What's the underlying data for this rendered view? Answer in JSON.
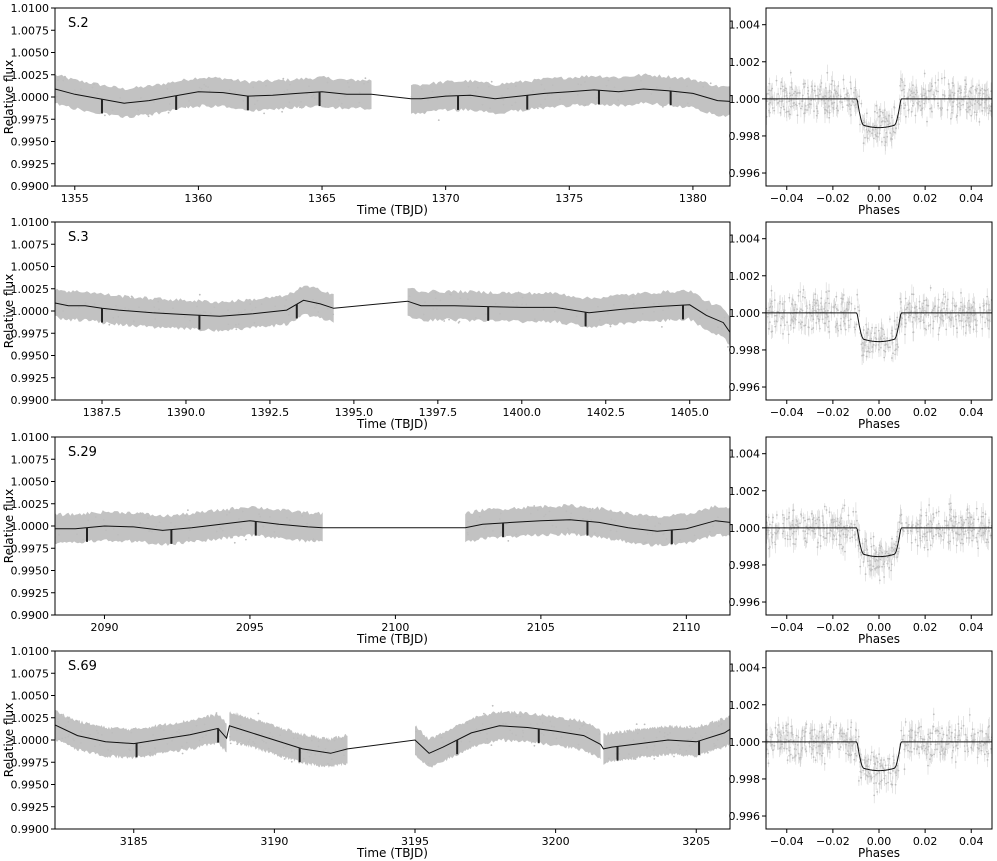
{
  "figure": {
    "left_xlabel": "Time (TBJD)",
    "left_ylabel": "Relative flux",
    "right_xlabel": "Phases",
    "colors": {
      "data": "#c2c2c2",
      "model": "#111111",
      "axes": "#000000"
    }
  },
  "chart_data": [
    {
      "type": "scatter",
      "panel": "light-curve",
      "label": "S.2",
      "xlabel": "Time (TBJD)",
      "ylabel": "Relative flux",
      "xlim": [
        1354.2,
        1381.5
      ],
      "ylim": [
        0.99,
        1.01
      ],
      "xticks": [
        1355,
        1360,
        1365,
        1370,
        1375,
        1380
      ],
      "yticks": [
        0.99,
        0.9925,
        0.995,
        0.9975,
        1.0,
        1.0025,
        1.005,
        1.0075,
        1.01
      ],
      "ytick_labels": [
        "0.9900",
        "0.9925",
        "0.9950",
        "0.9975",
        "1.0000",
        "1.0025",
        "1.0050",
        "1.0075",
        "1.0100"
      ],
      "segments": [
        [
          1354.2,
          1367.0
        ],
        [
          1368.6,
          1381.5
        ]
      ],
      "transits": [
        1356.1,
        1359.1,
        1362.0,
        1364.9,
        1370.5,
        1373.3,
        1376.2,
        1379.1
      ],
      "trend": {
        "x": [
          1354.2,
          1355,
          1356,
          1357,
          1358,
          1359,
          1360,
          1361,
          1362,
          1363,
          1364,
          1365,
          1366,
          1367,
          1368.6,
          1369,
          1370,
          1371,
          1372,
          1373,
          1374,
          1375,
          1376,
          1377,
          1378,
          1379,
          1380,
          1381,
          1381.5
        ],
        "y": [
          1.0009,
          1.0003,
          0.9998,
          0.9993,
          0.9996,
          1.0001,
          1.0006,
          1.0005,
          1.0001,
          1.0002,
          1.0004,
          1.0006,
          1.0003,
          1.0003,
          0.9998,
          0.9998,
          1.0001,
          1.0002,
          0.9998,
          1.0001,
          1.0004,
          1.0006,
          1.0008,
          1.0006,
          1.0009,
          1.0007,
          1.0004,
          0.9996,
          0.9995
        ]
      }
    },
    {
      "type": "scatter",
      "panel": "phase-fold",
      "xlabel": "Phases",
      "xlim": [
        -0.049,
        0.049
      ],
      "ylim": [
        0.9953,
        1.0049
      ],
      "xticks": [
        -0.04,
        -0.02,
        0.0,
        0.02,
        0.04
      ],
      "xtick_labels": [
        "−0.04",
        "−0.02",
        "0.00",
        "0.02",
        "0.04"
      ],
      "yticks": [
        0.996,
        0.998,
        1.0,
        1.002,
        1.004
      ],
      "ytick_labels": [
        "0.996",
        "0.998",
        "1.000",
        "1.002",
        "1.004"
      ],
      "model": {
        "baseline": 1.0,
        "depth": 0.00155,
        "t1": 0.0095,
        "t2": 0.0065
      }
    },
    {
      "type": "scatter",
      "panel": "light-curve",
      "label": "S.3",
      "xlabel": "Time (TBJD)",
      "ylabel": "Relative flux",
      "xlim": [
        1386.1,
        1406.2
      ],
      "ylim": [
        0.99,
        1.01
      ],
      "xticks": [
        1387.5,
        1390.0,
        1392.5,
        1395.0,
        1397.5,
        1400.0,
        1402.5,
        1405.0
      ],
      "xtick_labels": [
        "1387.5",
        "1390.0",
        "1392.5",
        "1395.0",
        "1397.5",
        "1400.0",
        "1402.5",
        "1405.0"
      ],
      "yticks": [
        0.99,
        0.9925,
        0.995,
        0.9975,
        1.0,
        1.0025,
        1.005,
        1.0075,
        1.01
      ],
      "ytick_labels": [
        "0.9900",
        "0.9925",
        "0.9950",
        "0.9975",
        "1.0000",
        "1.0025",
        "1.0050",
        "1.0075",
        "1.0100"
      ],
      "segments": [
        [
          1386.1,
          1394.4
        ],
        [
          1396.6,
          1406.2
        ]
      ],
      "transits": [
        1387.5,
        1390.4,
        1393.3,
        1399.0,
        1401.9,
        1404.8
      ],
      "trend": {
        "x": [
          1386.1,
          1386.5,
          1387.0,
          1387.5,
          1388,
          1389,
          1390,
          1391,
          1392,
          1393,
          1393.5,
          1394,
          1394.4,
          1396.6,
          1397,
          1398,
          1399,
          1400,
          1401,
          1402,
          1403,
          1404,
          1405,
          1405.5,
          1406,
          1406.2
        ],
        "y": [
          1.0009,
          1.0006,
          1.0006,
          1.0003,
          1.0001,
          0.9998,
          0.9996,
          0.9994,
          0.9997,
          1.0001,
          1.0012,
          1.0008,
          1.0003,
          1.0011,
          1.0006,
          1.0006,
          1.0005,
          1.0004,
          1.0004,
          0.9998,
          1.0002,
          1.0005,
          1.0007,
          0.9995,
          0.9987,
          0.9976
        ]
      }
    },
    {
      "type": "scatter",
      "panel": "phase-fold",
      "xlabel": "Phases",
      "xlim": [
        -0.049,
        0.049
      ],
      "ylim": [
        0.9953,
        1.0049
      ],
      "xticks": [
        -0.04,
        -0.02,
        0.0,
        0.02,
        0.04
      ],
      "xtick_labels": [
        "−0.04",
        "−0.02",
        "0.00",
        "0.02",
        "0.04"
      ],
      "yticks": [
        0.996,
        0.998,
        1.0,
        1.002,
        1.004
      ],
      "ytick_labels": [
        "0.996",
        "0.998",
        "1.000",
        "1.002",
        "1.004"
      ],
      "model": {
        "baseline": 1.0,
        "depth": 0.00155,
        "t1": 0.0095,
        "t2": 0.0065
      }
    },
    {
      "type": "scatter",
      "panel": "light-curve",
      "label": "S.29",
      "xlabel": "Time (TBJD)",
      "ylabel": "Relative flux",
      "xlim": [
        2088.3,
        2111.5
      ],
      "ylim": [
        0.99,
        1.01
      ],
      "xticks": [
        2090,
        2095,
        2100,
        2105,
        2110
      ],
      "yticks": [
        0.99,
        0.9925,
        0.995,
        0.9975,
        1.0,
        1.0025,
        1.005,
        1.0075,
        1.01
      ],
      "ytick_labels": [
        "0.9900",
        "0.9925",
        "0.9950",
        "0.9975",
        "1.0000",
        "1.0025",
        "1.0050",
        "1.0075",
        "1.0100"
      ],
      "segments": [
        [
          2088.3,
          2097.5
        ],
        [
          2102.4,
          2111.5
        ]
      ],
      "transits": [
        2089.4,
        2092.3,
        2095.2,
        2103.7,
        2106.6,
        2109.5
      ],
      "trend": {
        "x": [
          2088.3,
          2089,
          2090,
          2091,
          2092,
          2093,
          2094,
          2095,
          2096,
          2097,
          2097.5,
          2102.4,
          2103,
          2104,
          2105,
          2106,
          2107,
          2108,
          2109,
          2110,
          2111,
          2111.5
        ],
        "y": [
          0.9997,
          0.9997,
          1.0,
          0.9999,
          0.9995,
          0.9998,
          1.0002,
          1.0006,
          1.0002,
          0.9999,
          0.9998,
          0.9998,
          1.0002,
          1.0004,
          1.0006,
          1.0007,
          1.0004,
          0.9998,
          0.9994,
          0.9997,
          1.0006,
          1.0004
        ]
      }
    },
    {
      "type": "scatter",
      "panel": "phase-fold",
      "xlabel": "Phases",
      "xlim": [
        -0.049,
        0.049
      ],
      "ylim": [
        0.9953,
        1.0049
      ],
      "xticks": [
        -0.04,
        -0.02,
        0.0,
        0.02,
        0.04
      ],
      "xtick_labels": [
        "−0.04",
        "−0.02",
        "0.00",
        "0.02",
        "0.04"
      ],
      "yticks": [
        0.996,
        0.998,
        1.0,
        1.002,
        1.004
      ],
      "ytick_labels": [
        "0.996",
        "0.998",
        "1.000",
        "1.002",
        "1.004"
      ],
      "model": {
        "baseline": 1.0,
        "depth": 0.00155,
        "t1": 0.0095,
        "t2": 0.0065
      }
    },
    {
      "type": "scatter",
      "panel": "light-curve",
      "label": "S.69",
      "xlabel": "Time (TBJD)",
      "ylabel": "Relative flux",
      "xlim": [
        3182.2,
        3206.2
      ],
      "ylim": [
        0.99,
        1.01
      ],
      "xticks": [
        3185,
        3190,
        3195,
        3200,
        3205
      ],
      "yticks": [
        0.99,
        0.9925,
        0.995,
        0.9975,
        1.0,
        1.0025,
        1.005,
        1.0075,
        1.01
      ],
      "ytick_labels": [
        "0.9900",
        "0.9925",
        "0.9950",
        "0.9975",
        "1.0000",
        "1.0025",
        "1.0050",
        "1.0075",
        "1.0100"
      ],
      "segments": [
        [
          3182.2,
          3188.3
        ],
        [
          3188.4,
          3192.6
        ],
        [
          3195.0,
          3201.6
        ],
        [
          3201.7,
          3206.2
        ]
      ],
      "transits": [
        3185.1,
        3188.0,
        3190.9,
        3196.5,
        3199.4,
        3202.2,
        3205.1
      ],
      "trend": {
        "x": [
          3182.2,
          3183,
          3184,
          3185,
          3186,
          3187,
          3188,
          3188.3,
          3188.4,
          3189,
          3190,
          3191,
          3192,
          3192.6,
          3195.0,
          3195.5,
          3196,
          3197,
          3198,
          3199,
          3200,
          3201,
          3201.6,
          3201.7,
          3202,
          3203,
          3204,
          3205,
          3206,
          3206.2
        ],
        "y": [
          1.0017,
          1.0005,
          0.9998,
          0.9996,
          1.0001,
          1.0006,
          1.0013,
          1.0002,
          1.0016,
          1.001,
          1.0,
          0.999,
          0.9985,
          0.999,
          1.0,
          0.9985,
          0.9992,
          1.0008,
          1.0016,
          1.0014,
          1.001,
          1.0005,
          0.9995,
          0.999,
          0.9992,
          0.9996,
          1.0,
          0.9998,
          1.0008,
          1.0012
        ]
      }
    },
    {
      "type": "scatter",
      "panel": "phase-fold",
      "xlabel": "Phases",
      "xlim": [
        -0.049,
        0.049
      ],
      "ylim": [
        0.9953,
        1.0049
      ],
      "xticks": [
        -0.04,
        -0.02,
        0.0,
        0.02,
        0.04
      ],
      "xtick_labels": [
        "−0.04",
        "−0.02",
        "0.00",
        "0.02",
        "0.04"
      ],
      "yticks": [
        0.996,
        0.998,
        1.0,
        1.002,
        1.004
      ],
      "ytick_labels": [
        "0.996",
        "0.998",
        "1.000",
        "1.002",
        "1.004"
      ],
      "model": {
        "baseline": 1.0,
        "depth": 0.00155,
        "t1": 0.0095,
        "t2": 0.0065
      }
    }
  ]
}
